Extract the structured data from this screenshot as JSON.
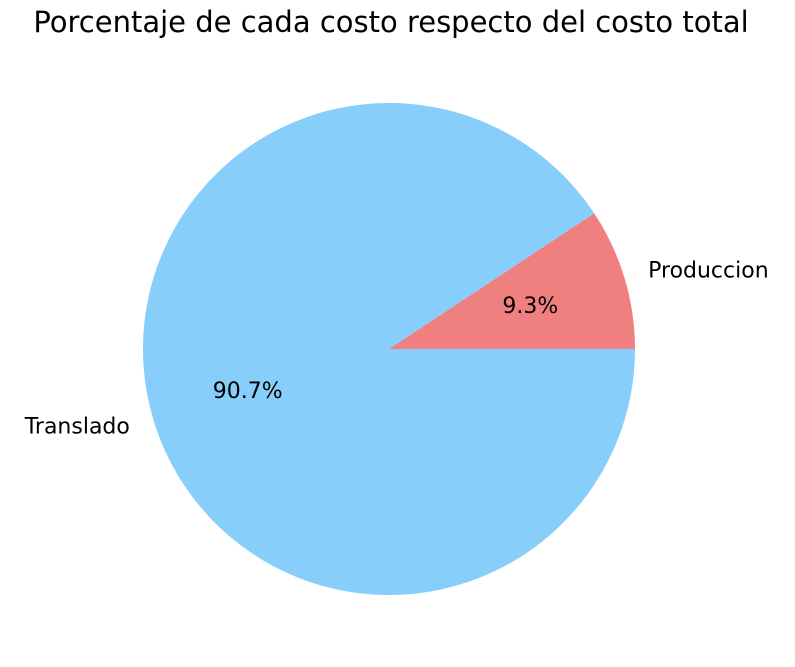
{
  "chart_data": {
    "type": "pie",
    "title": "Porcentaje de cada costo respecto del costo total",
    "slices": [
      {
        "label": "Produccion",
        "value": 9.3,
        "pct_label": "9.3%",
        "color": "#F08080"
      },
      {
        "label": "Translado",
        "value": 90.7,
        "pct_label": "90.7%",
        "color": "#87CEFA"
      }
    ],
    "start_angle_deg": 0,
    "direction": "counterclockwise",
    "legend": "none"
  }
}
